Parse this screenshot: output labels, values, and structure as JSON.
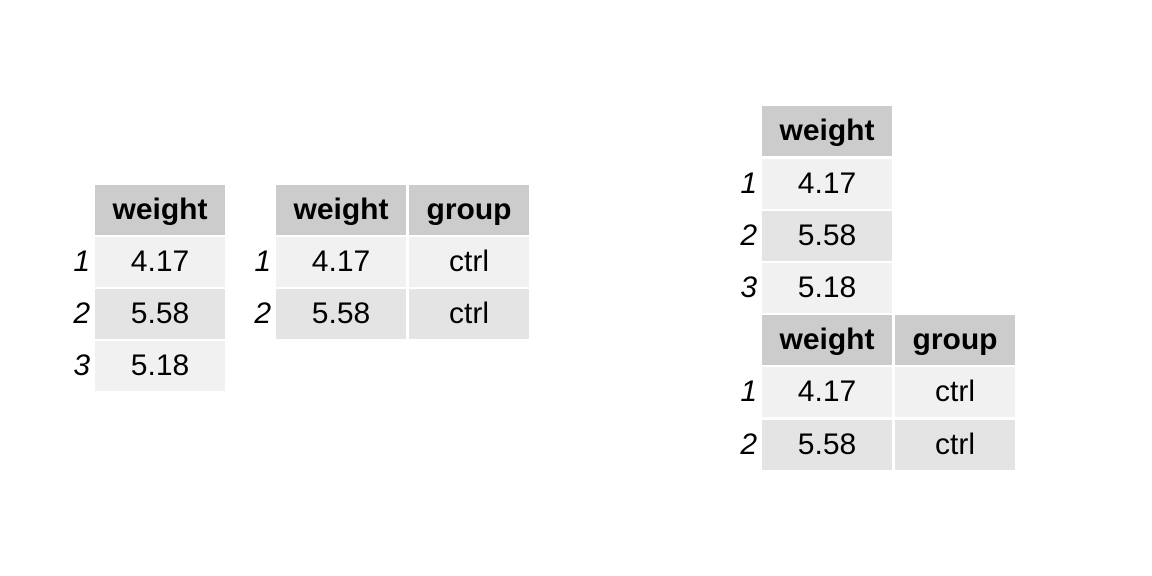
{
  "tables": {
    "t1": {
      "headers": [
        "weight"
      ],
      "rows": [
        {
          "name": "1",
          "cells": [
            "4.17"
          ]
        },
        {
          "name": "2",
          "cells": [
            "5.58"
          ]
        },
        {
          "name": "3",
          "cells": [
            "5.18"
          ]
        }
      ]
    },
    "t2": {
      "headers": [
        "weight",
        "group"
      ],
      "rows": [
        {
          "name": "1",
          "cells": [
            "4.17",
            "ctrl"
          ]
        },
        {
          "name": "2",
          "cells": [
            "5.58",
            "ctrl"
          ]
        }
      ]
    },
    "t3": {
      "headers": [
        "weight"
      ],
      "rows": [
        {
          "name": "1",
          "cells": [
            "4.17"
          ]
        },
        {
          "name": "2",
          "cells": [
            "5.58"
          ]
        },
        {
          "name": "3",
          "cells": [
            "5.18"
          ]
        }
      ]
    },
    "t4": {
      "headers": [
        "weight",
        "group"
      ],
      "rows": [
        {
          "name": "1",
          "cells": [
            "4.17",
            "ctrl"
          ]
        },
        {
          "name": "2",
          "cells": [
            "5.58",
            "ctrl"
          ]
        }
      ]
    }
  }
}
